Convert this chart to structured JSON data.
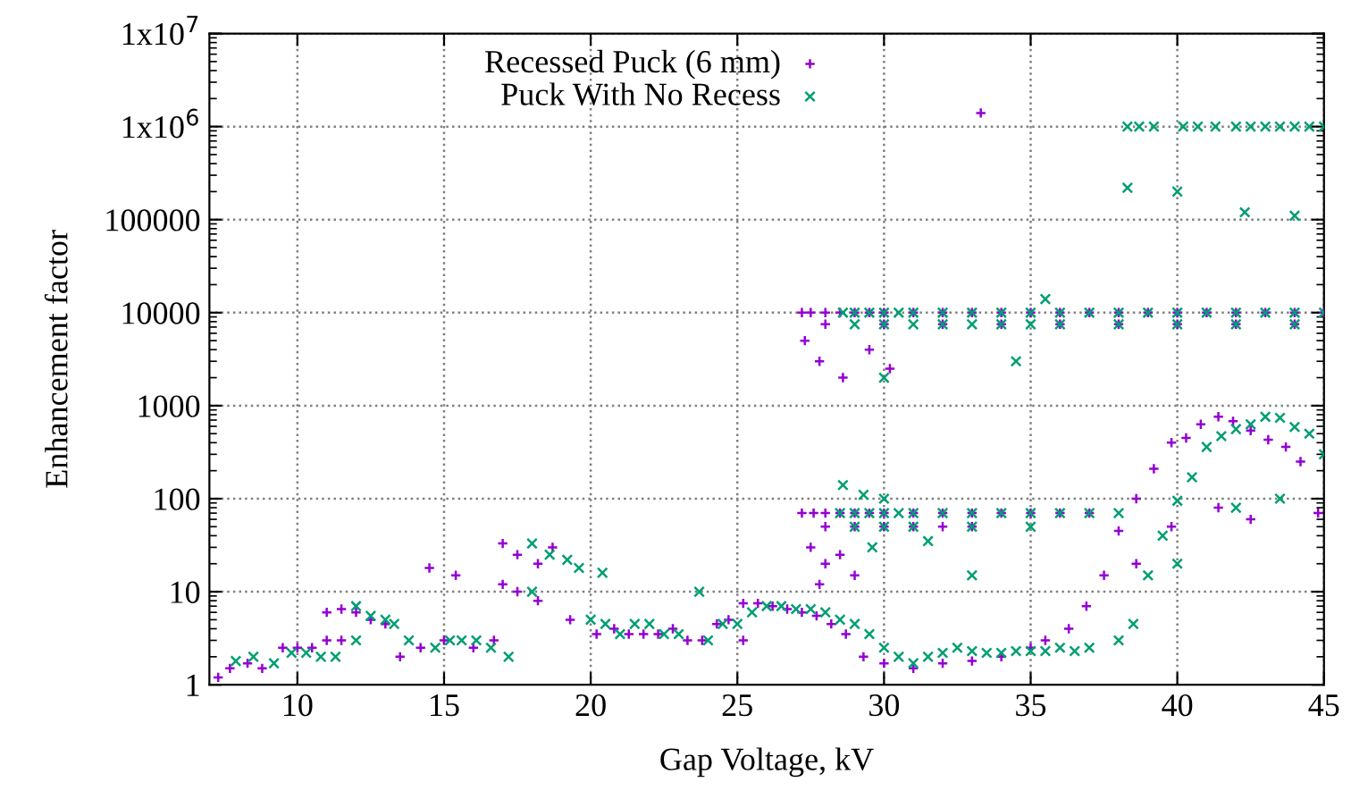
{
  "chart_data": {
    "type": "scatter",
    "xlabel": "Gap Voltage, kV",
    "ylabel": "Enhancement factor",
    "xlim": [
      7,
      45
    ],
    "xticks": [
      10,
      15,
      20,
      25,
      30,
      35,
      40,
      45
    ],
    "ylim": [
      1,
      10000000
    ],
    "yticks": [
      1,
      10,
      100,
      1000,
      10000,
      100000,
      {
        "value": 1000000,
        "label": "1x10$^{6}$"
      },
      {
        "value": 10000000,
        "label": "1x10$^{7}$"
      }
    ],
    "log": "y",
    "grid": true,
    "legend": "top",
    "marker": "cross",
    "series": [
      {
        "name": "Recessed Puck (6 mm)",
        "color": "#9400d3",
        "x": [
          7.3,
          7.7,
          8.3,
          8.8,
          9.5,
          10,
          10.5,
          11,
          11,
          11.5,
          11.5,
          12,
          12.5,
          13,
          13.5,
          14.2,
          14.5,
          15,
          15.4,
          16,
          16.7,
          17,
          17,
          17.5,
          17.5,
          18.2,
          18.2,
          18.7,
          19.3,
          20.2,
          20.8,
          21.3,
          21.8,
          22.3,
          22.8,
          23.3,
          23.8,
          24.3,
          24.7,
          25.2,
          25.2,
          25.7,
          26.2,
          26.7,
          27.2,
          27.7,
          28.2,
          28.7,
          29.3,
          30,
          31,
          32,
          33,
          34,
          35,
          35.5,
          36.3,
          36.9,
          37.5,
          38,
          38.6,
          39.2,
          39.8,
          40.3,
          40.8,
          41.4,
          41.9,
          42.5,
          43.1,
          43.7,
          44.2,
          44.8,
          38.6,
          39.8,
          41.4,
          42.5,
          27.2,
          27.5,
          28,
          28.5,
          29,
          29.5,
          30,
          31,
          32,
          33,
          34,
          35,
          36,
          37,
          38,
          39,
          40,
          41,
          42,
          43,
          44,
          45,
          28,
          30,
          32,
          34,
          36,
          38,
          40,
          42,
          44,
          27.3,
          27.8,
          28.6,
          29.5,
          30.2,
          27.2,
          27.6,
          28,
          28.5,
          29,
          29.5,
          30,
          31,
          32,
          33,
          34,
          35,
          36,
          37,
          28,
          29,
          30,
          31,
          32,
          33,
          27.5,
          28,
          28.5,
          29,
          27.8,
          33.3
        ],
        "values": [
          1.2,
          1.5,
          1.7,
          1.5,
          2.5,
          2.5,
          2.5,
          6,
          3,
          6.5,
          3,
          6,
          5,
          4.5,
          2,
          2.5,
          18,
          3,
          15,
          2.5,
          3,
          33,
          12,
          25,
          10,
          20,
          8,
          30,
          5,
          3.5,
          4,
          3.5,
          3.5,
          3.5,
          4,
          3,
          3,
          4.5,
          5,
          7.5,
          3,
          7.5,
          7,
          6.5,
          6,
          5.5,
          4.5,
          3.5,
          2,
          1.7,
          1.5,
          1.7,
          1.8,
          2,
          2.5,
          3,
          4,
          7,
          15,
          45,
          100,
          210,
          400,
          450,
          630,
          760,
          680,
          540,
          430,
          360,
          250,
          70,
          20,
          50,
          80,
          60,
          10000,
          10000,
          10000,
          10000,
          10000,
          10000,
          10000,
          10000,
          10000,
          10000,
          10000,
          10000,
          10000,
          10000,
          10000,
          10000,
          10000,
          10000,
          10000,
          10000,
          10000,
          10000,
          7500,
          7500,
          7500,
          7500,
          7500,
          7500,
          7500,
          7500,
          7500,
          5000,
          3000,
          2000,
          4000,
          2500,
          70,
          70,
          70,
          70,
          70,
          70,
          70,
          70,
          70,
          70,
          70,
          70,
          70,
          70,
          50,
          50,
          50,
          50,
          50,
          50,
          30,
          20,
          25,
          15,
          12,
          1400000
        ]
      },
      {
        "name": "Puck With No Recess",
        "color": "#009e73",
        "x": [
          7.9,
          8.5,
          9.2,
          9.8,
          10.3,
          10.8,
          11.3,
          12,
          12,
          12.5,
          13,
          13.3,
          13.8,
          14.7,
          15.2,
          15.6,
          16.1,
          16.6,
          17.2,
          18,
          18,
          18.6,
          19.2,
          19.6,
          20,
          20.4,
          20.5,
          21,
          21.5,
          22,
          22.5,
          23,
          23.7,
          24,
          24.5,
          25,
          25.5,
          26,
          26.5,
          27,
          27.5,
          28,
          28.5,
          29,
          29.5,
          30,
          30.5,
          31,
          31.5,
          32,
          32.5,
          33,
          33.5,
          34,
          34.5,
          35,
          35.5,
          36,
          36.5,
          37,
          38,
          38.5,
          39,
          39.5,
          40,
          40.5,
          41,
          41.5,
          42,
          42.5,
          43,
          43.5,
          44,
          44.5,
          45,
          40,
          42,
          43.5,
          28.6,
          29,
          29.5,
          30,
          30.5,
          31,
          32,
          33,
          34,
          35,
          36,
          37,
          38,
          39,
          40,
          41,
          42,
          43,
          44,
          45,
          29,
          30,
          31,
          32,
          33,
          34,
          35,
          36,
          38,
          40,
          42,
          44,
          35.5,
          34.5,
          30,
          28.5,
          29,
          29.5,
          30,
          30.5,
          31,
          32,
          33,
          34,
          35,
          36,
          37,
          38,
          29,
          30,
          31,
          33,
          35,
          29.6,
          31.5,
          33,
          28.6,
          29.3,
          30,
          38.3,
          38.7,
          39.2,
          40.2,
          40.7,
          41.3,
          42,
          42.5,
          43,
          43.5,
          44,
          44.5,
          45,
          38.3,
          40,
          42.3,
          44
        ],
        "values": [
          1.8,
          2,
          1.7,
          2.2,
          2.2,
          2,
          2,
          7,
          3,
          5.5,
          5,
          4.5,
          3,
          2.5,
          3,
          3,
          3,
          2.5,
          2,
          33,
          10,
          25,
          22,
          18,
          5,
          16,
          4.5,
          3.5,
          4.5,
          4.5,
          3.5,
          3.5,
          10,
          3,
          4.5,
          4.5,
          6,
          7,
          7,
          6.5,
          6.5,
          6,
          5,
          4.5,
          3.5,
          2.5,
          2,
          1.7,
          2,
          2.2,
          2.5,
          2.3,
          2.2,
          2.2,
          2.3,
          2.3,
          2.3,
          2.5,
          2.3,
          2.5,
          3,
          4.5,
          15,
          40,
          95,
          170,
          360,
          470,
          560,
          630,
          760,
          740,
          590,
          500,
          300,
          20,
          80,
          100,
          10000,
          10000,
          10000,
          10000,
          10000,
          10000,
          10000,
          10000,
          10000,
          10000,
          10000,
          10000,
          10000,
          10000,
          10000,
          10000,
          10000,
          10000,
          10000,
          10000,
          7500,
          7500,
          7500,
          7500,
          7500,
          7500,
          7500,
          7500,
          7500,
          7500,
          7500,
          7500,
          14000,
          3000,
          2000,
          70,
          70,
          70,
          70,
          70,
          70,
          70,
          70,
          70,
          70,
          70,
          70,
          70,
          50,
          50,
          50,
          50,
          50,
          30,
          35,
          15,
          140,
          110,
          100,
          1000000,
          1000000,
          1000000,
          1000000,
          1000000,
          1000000,
          1000000,
          1000000,
          1000000,
          1000000,
          1000000,
          1000000,
          1000000,
          220000,
          200000,
          120000,
          110000
        ]
      }
    ]
  }
}
